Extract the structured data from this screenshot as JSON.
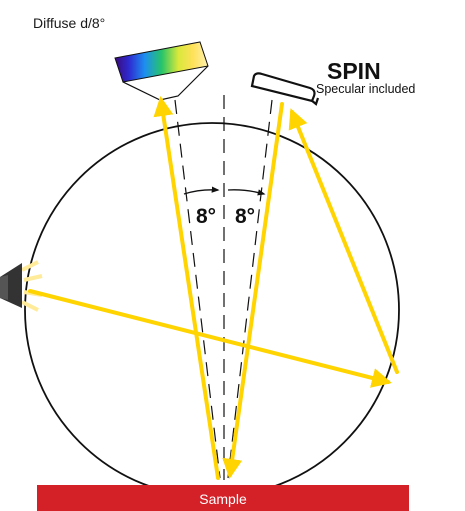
{
  "diagram": {
    "title": "Diffuse d/8°",
    "spin_label": "SPIN",
    "spin_sub": "Specular included",
    "angle_left": "8°",
    "angle_right": "8°",
    "sample_label": "Sample"
  },
  "colors": {
    "ray": "#FFD400",
    "ray_glow": "#FFEB99",
    "sample": "#D42128",
    "sphere_stroke": "#111111",
    "lamp": "#333333"
  },
  "icons": {
    "light_source": "lamp-icon",
    "detector": "spectrum-detector-icon",
    "specular_port": "specular-port-icon"
  }
}
